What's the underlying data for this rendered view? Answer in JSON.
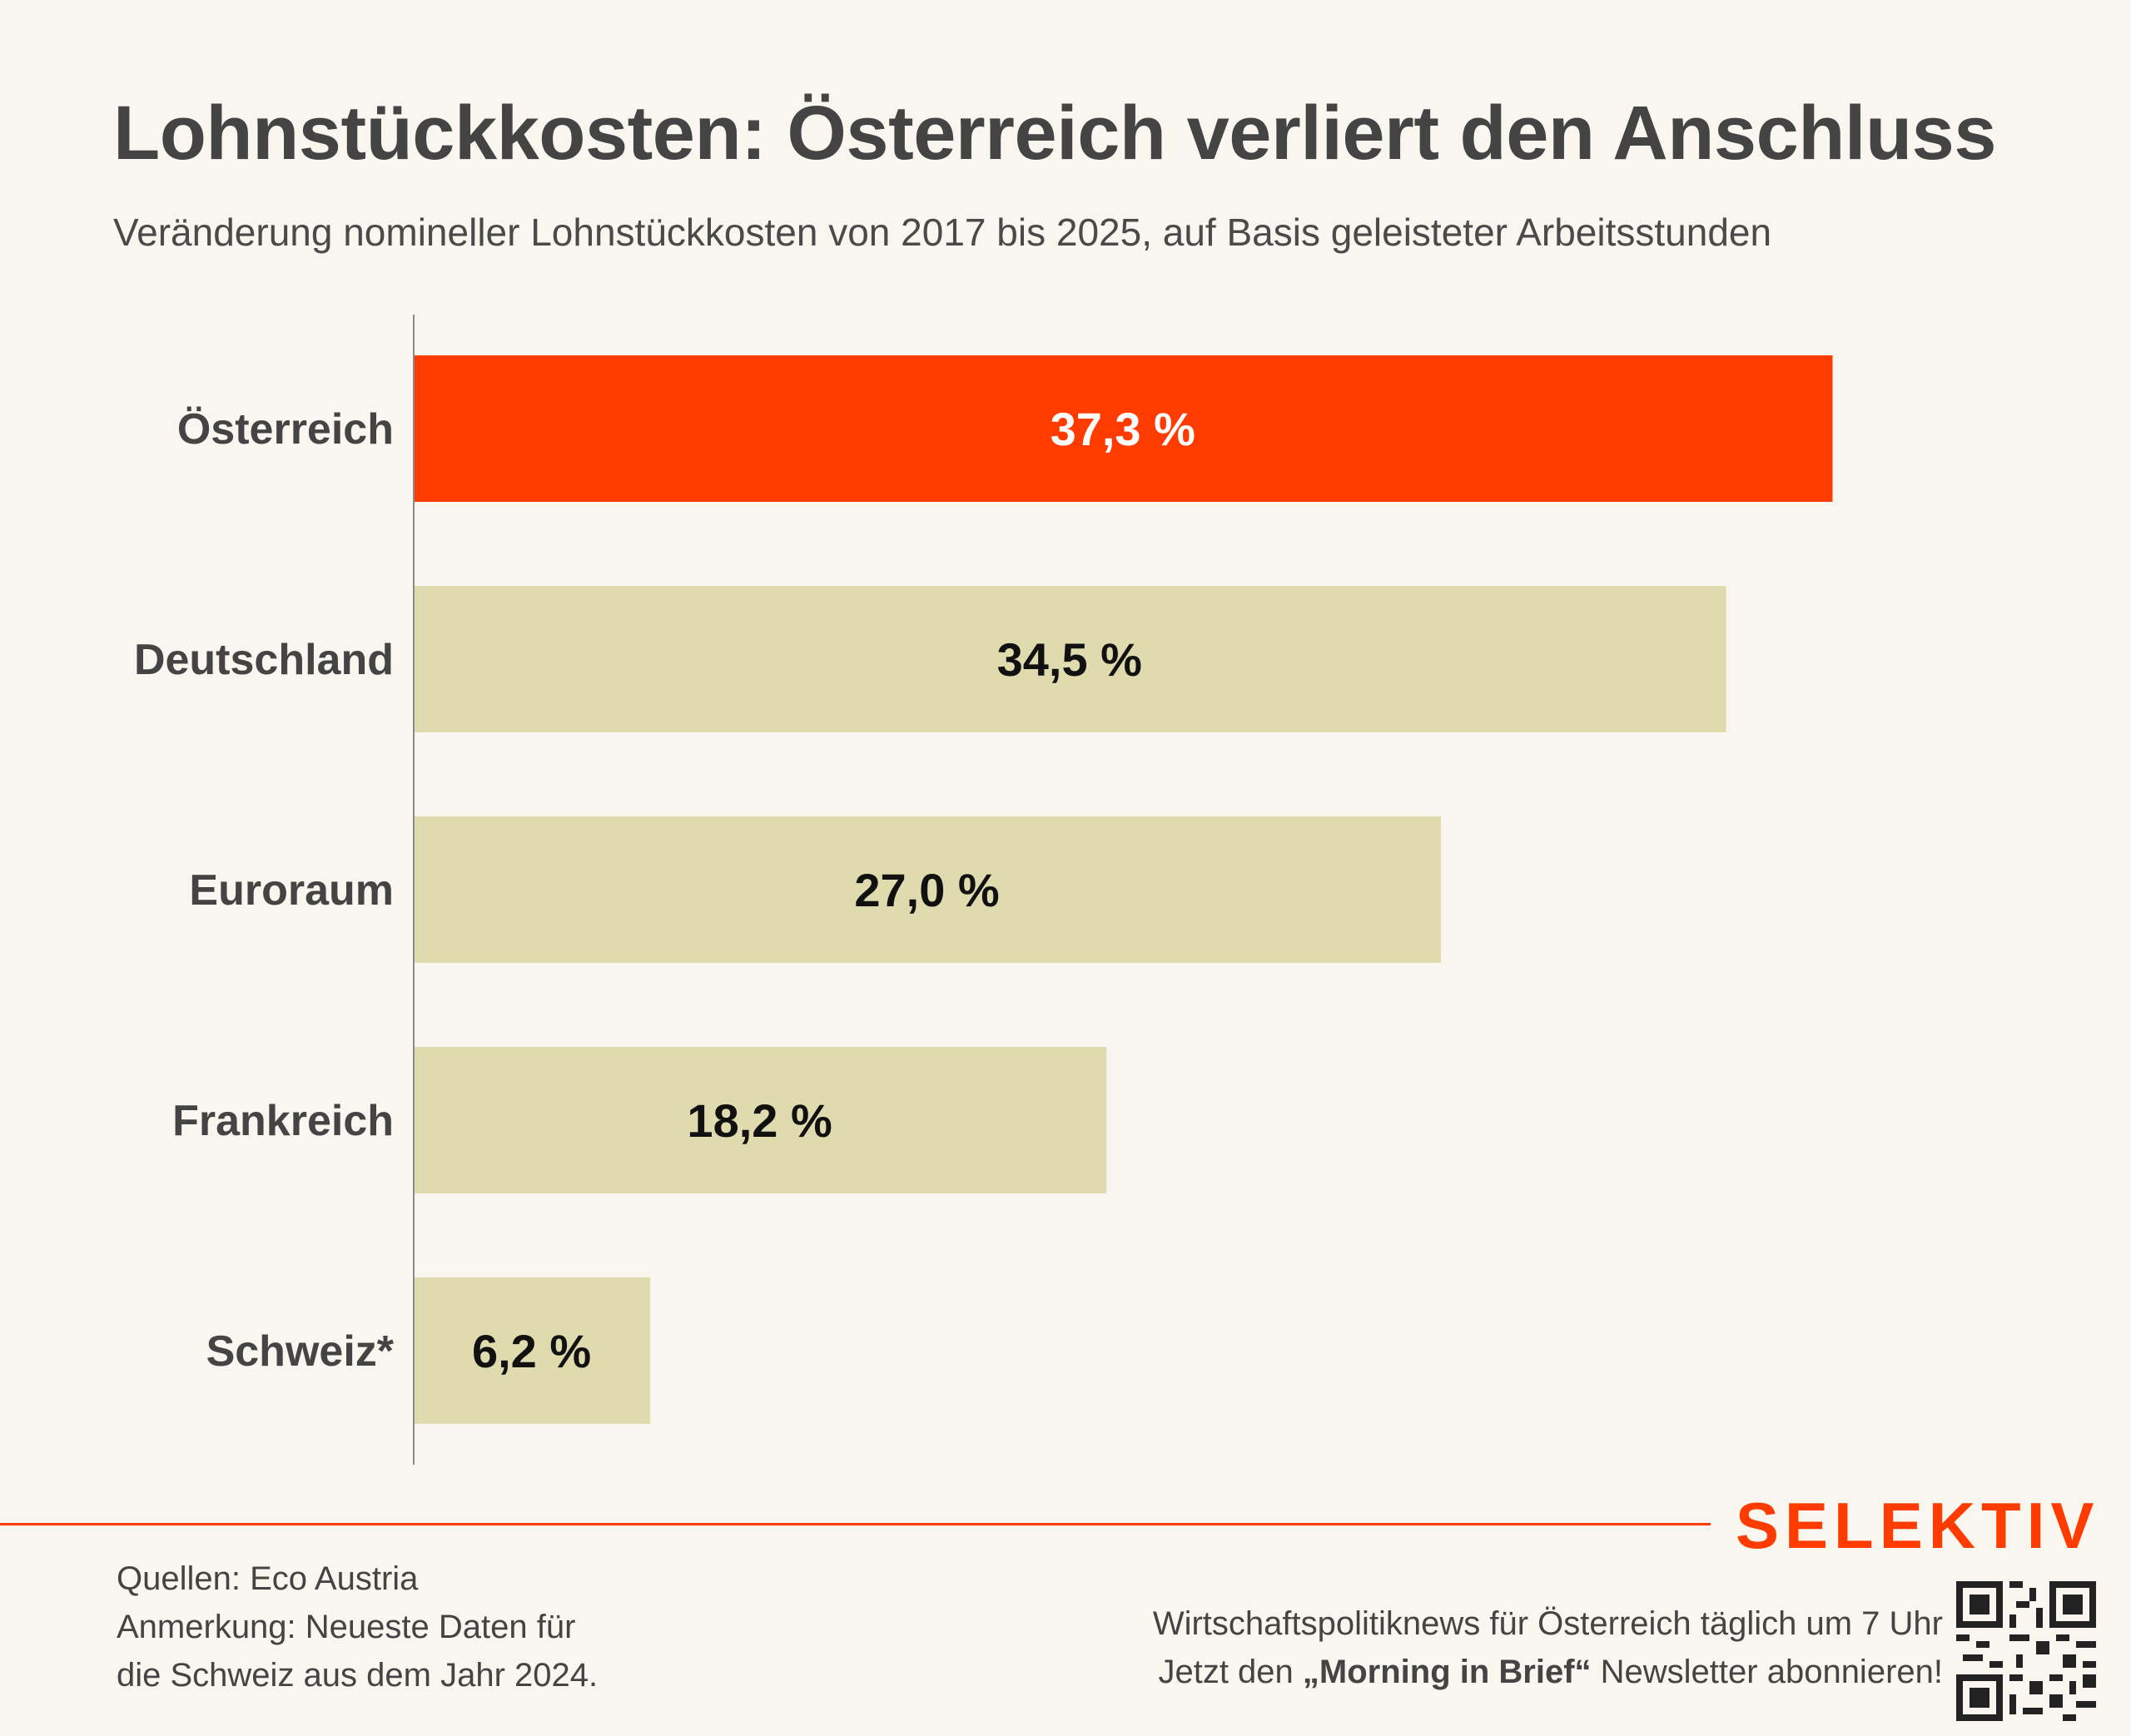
{
  "header": {
    "title": "Lohnstückkosten: Österreich verliert den Anschluss",
    "subtitle": "Veränderung nomineller Lohnstückkosten von 2017 bis 2025, auf Basis geleisteter Arbeitsstunden"
  },
  "chart_data": {
    "type": "bar",
    "orientation": "horizontal",
    "categories": [
      "Österreich",
      "Deutschland",
      "Euroraum",
      "Frankreich",
      "Schweiz*"
    ],
    "values": [
      37.3,
      34.5,
      27.0,
      18.2,
      6.2
    ],
    "value_labels": [
      "37,3 %",
      "34,5 %",
      "27,0 %",
      "18,2 %",
      "6,2 %"
    ],
    "highlight_index": 0,
    "highlight_color": "#ff3b00",
    "bar_color": "#dfdbae",
    "xlim": [
      0,
      38.8
    ],
    "grid": false,
    "xlabel": "",
    "ylabel": ""
  },
  "footer": {
    "brand": "SELEKTIV",
    "sources": "Quellen: Eco Austria",
    "note_line1": "Anmerkung: Neueste Daten für",
    "note_line2": "die Schweiz aus dem Jahr 2024.",
    "promo_line1": "Wirtschaftspolitiknews für Österreich täglich um 7 Uhr",
    "promo_pre": "Jetzt den ",
    "promo_bold": "„Morning in Brief“",
    "promo_post": " Newsletter abonnieren!",
    "qr_icon": "qr-code-icon",
    "accent_color": "#ff3b00"
  }
}
